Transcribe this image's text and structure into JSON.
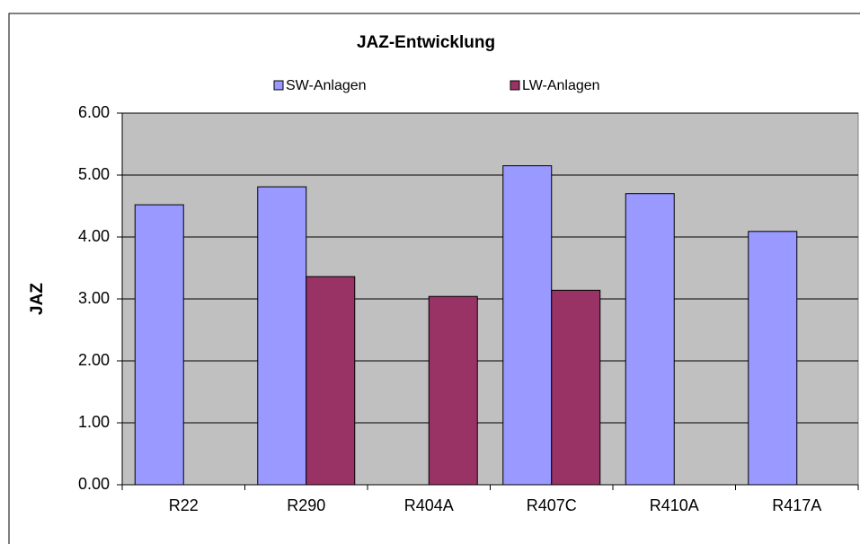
{
  "chart_data": {
    "type": "bar",
    "title": "JAZ-Entwicklung",
    "y_label": "JAZ",
    "categories": [
      "R22",
      "R290",
      "R404A",
      "R407C",
      "R410A",
      "R417A"
    ],
    "series": [
      {
        "name": "SW-Anlagen",
        "color": "#9999ff",
        "values": [
          4.52,
          4.81,
          null,
          5.15,
          4.7,
          4.09
        ]
      },
      {
        "name": "LW-Anlagen",
        "color": "#993366",
        "values": [
          null,
          3.36,
          3.04,
          3.14,
          null,
          null
        ]
      }
    ],
    "ylim": [
      0,
      6
    ],
    "yticks": [
      {
        "value": 0,
        "label": "0.00"
      },
      {
        "value": 1,
        "label": "1.00"
      },
      {
        "value": 2,
        "label": "2.00"
      },
      {
        "value": 3,
        "label": "3.00"
      },
      {
        "value": 4,
        "label": "4.00"
      },
      {
        "value": 5,
        "label": "5.00"
      },
      {
        "value": 6,
        "label": "6.00"
      }
    ],
    "grid": true
  }
}
